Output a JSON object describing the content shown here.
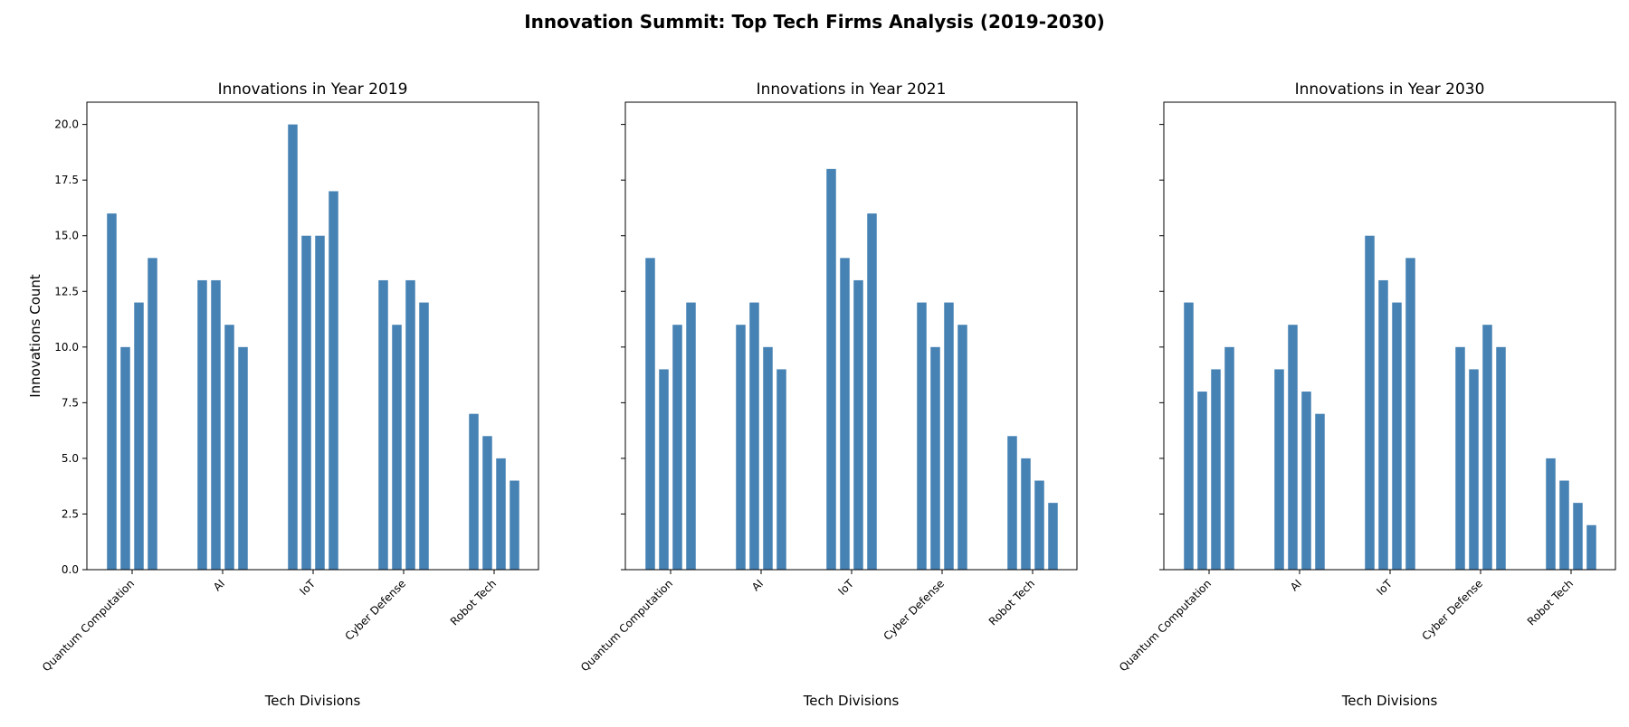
{
  "figure": {
    "title": "Innovation Summit: Top Tech Firms Analysis (2019-2030)"
  },
  "chart_data": [
    {
      "type": "bar",
      "title": "Innovations in Year 2019",
      "xlabel": "Tech Divisions",
      "ylabel": "Innovations Count",
      "ylim": [
        0,
        21
      ],
      "yticks": [
        "0.0",
        "2.5",
        "5.0",
        "7.5",
        "10.0",
        "12.5",
        "15.0",
        "17.5",
        "20.0"
      ],
      "categories": [
        "Quantum Computation",
        "AI",
        "IoT",
        "Cyber Defense",
        "Robot Tech"
      ],
      "bar_color": "#4682b4",
      "groups": [
        [
          16,
          10,
          12,
          14
        ],
        [
          13,
          13,
          11,
          10
        ],
        [
          20,
          15,
          15,
          17
        ],
        [
          13,
          11,
          13,
          12
        ],
        [
          7,
          6,
          5,
          4
        ]
      ]
    },
    {
      "type": "bar",
      "title": "Innovations in Year 2021",
      "xlabel": "Tech Divisions",
      "ylabel": "",
      "ylim": [
        0,
        21
      ],
      "categories": [
        "Quantum Computation",
        "AI",
        "IoT",
        "Cyber Defense",
        "Robot Tech"
      ],
      "bar_color": "#4682b4",
      "groups": [
        [
          14,
          9,
          11,
          12
        ],
        [
          11,
          12,
          10,
          9
        ],
        [
          18,
          14,
          13,
          16
        ],
        [
          12,
          10,
          12,
          11
        ],
        [
          6,
          5,
          4,
          3
        ]
      ]
    },
    {
      "type": "bar",
      "title": "Innovations in Year 2030",
      "xlabel": "Tech Divisions",
      "ylabel": "",
      "ylim": [
        0,
        21
      ],
      "categories": [
        "Quantum Computation",
        "AI",
        "IoT",
        "Cyber Defense",
        "Robot Tech"
      ],
      "bar_color": "#4682b4",
      "groups": [
        [
          12,
          8,
          9,
          10
        ],
        [
          9,
          11,
          8,
          7
        ],
        [
          15,
          13,
          12,
          14
        ],
        [
          10,
          9,
          11,
          10
        ],
        [
          5,
          4,
          3,
          2
        ]
      ]
    }
  ]
}
